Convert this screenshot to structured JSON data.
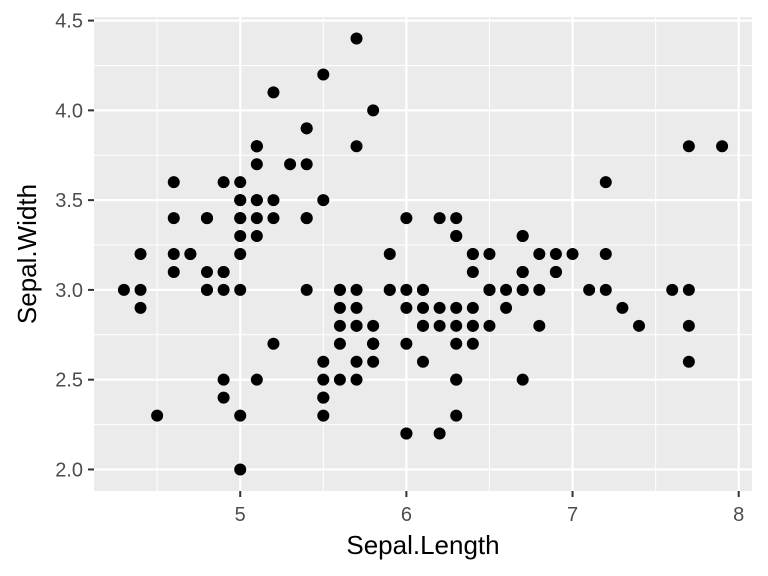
{
  "chart_data": {
    "type": "scatter",
    "xlabel": "Sepal.Length",
    "ylabel": "Sepal.Width",
    "xlim": [
      4.12,
      8.08
    ],
    "ylim": [
      1.88,
      4.52
    ],
    "x_ticks": [
      5,
      6,
      7,
      8
    ],
    "x_tick_labels": [
      "5",
      "6",
      "7",
      "8"
    ],
    "y_ticks": [
      2.0,
      2.5,
      3.0,
      3.5,
      4.0,
      4.5
    ],
    "y_tick_labels": [
      "2.0",
      "2.5",
      "3.0",
      "3.5",
      "4.0",
      "4.5"
    ],
    "grid": true,
    "theme": {
      "panel_background": "#ebebeb",
      "grid_color": "#ffffff",
      "point_color": "#000000",
      "tick_color": "#333333"
    },
    "points": [
      [
        5.1,
        3.5
      ],
      [
        4.9,
        3.0
      ],
      [
        4.7,
        3.2
      ],
      [
        4.6,
        3.1
      ],
      [
        5.0,
        3.6
      ],
      [
        5.4,
        3.9
      ],
      [
        4.6,
        3.4
      ],
      [
        5.0,
        3.4
      ],
      [
        4.4,
        2.9
      ],
      [
        4.9,
        3.1
      ],
      [
        5.4,
        3.7
      ],
      [
        4.8,
        3.4
      ],
      [
        4.8,
        3.0
      ],
      [
        4.3,
        3.0
      ],
      [
        5.8,
        4.0
      ],
      [
        5.7,
        4.4
      ],
      [
        5.4,
        3.9
      ],
      [
        5.1,
        3.5
      ],
      [
        5.7,
        3.8
      ],
      [
        5.1,
        3.8
      ],
      [
        5.4,
        3.4
      ],
      [
        5.1,
        3.7
      ],
      [
        4.6,
        3.6
      ],
      [
        5.1,
        3.3
      ],
      [
        4.8,
        3.4
      ],
      [
        5.0,
        3.0
      ],
      [
        5.0,
        3.4
      ],
      [
        5.2,
        3.5
      ],
      [
        5.2,
        3.4
      ],
      [
        4.7,
        3.2
      ],
      [
        4.8,
        3.1
      ],
      [
        5.4,
        3.4
      ],
      [
        5.2,
        4.1
      ],
      [
        5.5,
        4.2
      ],
      [
        4.9,
        3.1
      ],
      [
        5.0,
        3.2
      ],
      [
        5.5,
        3.5
      ],
      [
        4.9,
        3.6
      ],
      [
        4.4,
        3.0
      ],
      [
        5.1,
        3.4
      ],
      [
        5.0,
        3.5
      ],
      [
        4.5,
        2.3
      ],
      [
        4.4,
        3.2
      ],
      [
        5.0,
        3.5
      ],
      [
        5.1,
        3.8
      ],
      [
        4.8,
        3.0
      ],
      [
        5.1,
        3.8
      ],
      [
        4.6,
        3.2
      ],
      [
        5.3,
        3.7
      ],
      [
        5.0,
        3.3
      ],
      [
        7.0,
        3.2
      ],
      [
        6.4,
        3.2
      ],
      [
        6.9,
        3.1
      ],
      [
        5.5,
        2.3
      ],
      [
        6.5,
        2.8
      ],
      [
        5.7,
        2.8
      ],
      [
        6.3,
        3.3
      ],
      [
        4.9,
        2.4
      ],
      [
        6.6,
        2.9
      ],
      [
        5.2,
        2.7
      ],
      [
        5.0,
        2.0
      ],
      [
        5.9,
        3.0
      ],
      [
        6.0,
        2.2
      ],
      [
        6.1,
        2.9
      ],
      [
        5.6,
        2.9
      ],
      [
        6.7,
        3.1
      ],
      [
        5.6,
        3.0
      ],
      [
        5.8,
        2.7
      ],
      [
        6.2,
        2.2
      ],
      [
        5.6,
        2.5
      ],
      [
        5.9,
        3.2
      ],
      [
        6.1,
        2.8
      ],
      [
        6.3,
        2.5
      ],
      [
        6.1,
        2.8
      ],
      [
        6.4,
        2.9
      ],
      [
        6.6,
        3.0
      ],
      [
        6.8,
        2.8
      ],
      [
        6.7,
        3.0
      ],
      [
        6.0,
        2.9
      ],
      [
        5.7,
        2.6
      ],
      [
        5.5,
        2.4
      ],
      [
        5.5,
        2.4
      ],
      [
        5.8,
        2.7
      ],
      [
        6.0,
        2.7
      ],
      [
        5.4,
        3.0
      ],
      [
        6.0,
        3.4
      ],
      [
        6.7,
        3.1
      ],
      [
        6.3,
        2.3
      ],
      [
        5.6,
        3.0
      ],
      [
        5.5,
        2.5
      ],
      [
        5.5,
        2.6
      ],
      [
        6.1,
        3.0
      ],
      [
        5.8,
        2.6
      ],
      [
        5.0,
        2.3
      ],
      [
        5.6,
        2.7
      ],
      [
        5.7,
        3.0
      ],
      [
        5.7,
        2.9
      ],
      [
        6.2,
        2.9
      ],
      [
        5.1,
        2.5
      ],
      [
        5.7,
        2.8
      ],
      [
        6.3,
        3.3
      ],
      [
        5.8,
        2.7
      ],
      [
        7.1,
        3.0
      ],
      [
        6.3,
        2.9
      ],
      [
        6.5,
        3.0
      ],
      [
        7.6,
        3.0
      ],
      [
        4.9,
        2.5
      ],
      [
        7.3,
        2.9
      ],
      [
        6.7,
        2.5
      ],
      [
        7.2,
        3.6
      ],
      [
        6.5,
        3.2
      ],
      [
        6.4,
        2.7
      ],
      [
        6.8,
        3.0
      ],
      [
        5.7,
        2.5
      ],
      [
        5.8,
        2.8
      ],
      [
        6.4,
        3.2
      ],
      [
        6.5,
        3.0
      ],
      [
        7.7,
        3.8
      ],
      [
        7.7,
        2.6
      ],
      [
        6.0,
        2.2
      ],
      [
        6.9,
        3.2
      ],
      [
        5.6,
        2.8
      ],
      [
        7.7,
        2.8
      ],
      [
        6.3,
        2.7
      ],
      [
        6.7,
        3.3
      ],
      [
        7.2,
        3.2
      ],
      [
        6.2,
        2.8
      ],
      [
        6.1,
        3.0
      ],
      [
        6.4,
        2.8
      ],
      [
        7.2,
        3.0
      ],
      [
        7.4,
        2.8
      ],
      [
        7.9,
        3.8
      ],
      [
        6.4,
        2.8
      ],
      [
        6.3,
        2.8
      ],
      [
        6.1,
        2.6
      ],
      [
        7.7,
        3.0
      ],
      [
        6.3,
        3.4
      ],
      [
        6.4,
        3.1
      ],
      [
        6.0,
        3.0
      ],
      [
        6.9,
        3.1
      ],
      [
        6.7,
        3.1
      ],
      [
        6.9,
        3.1
      ],
      [
        5.8,
        2.7
      ],
      [
        6.8,
        3.2
      ],
      [
        6.7,
        3.3
      ],
      [
        6.7,
        3.0
      ],
      [
        6.3,
        2.5
      ],
      [
        6.5,
        3.0
      ],
      [
        6.2,
        3.4
      ],
      [
        5.9,
        3.0
      ]
    ]
  }
}
